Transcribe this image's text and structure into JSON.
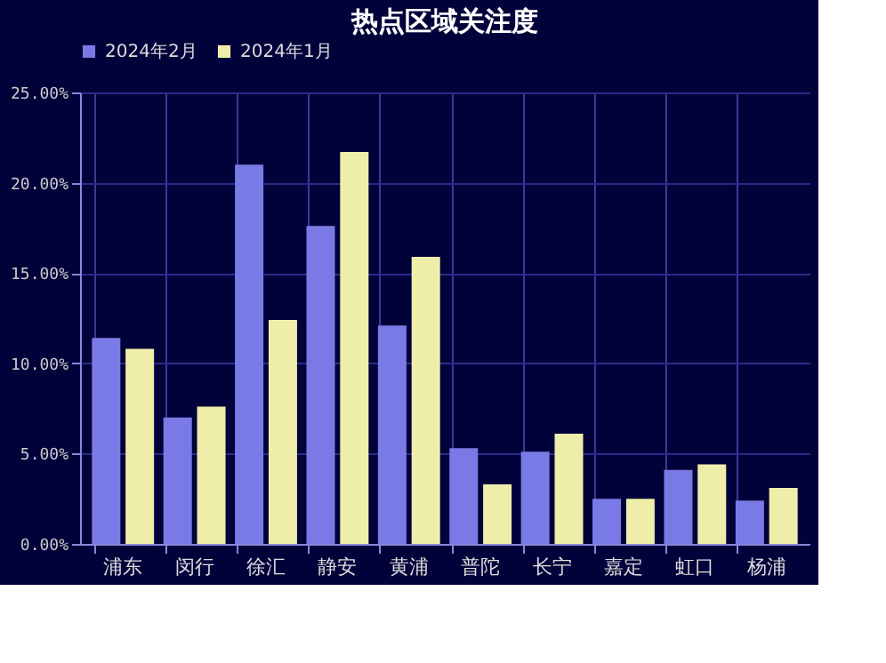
{
  "chart_data": {
    "type": "bar",
    "title": "热点区域关注度",
    "categories": [
      "浦东",
      "闵行",
      "徐汇",
      "静安",
      "黄浦",
      "普陀",
      "长宁",
      "嘉定",
      "虹口",
      "杨浦"
    ],
    "series": [
      {
        "name": "2024年2月",
        "color": "#7a7ae6",
        "values": [
          11.4,
          7.0,
          21.0,
          17.6,
          12.1,
          5.3,
          5.1,
          2.5,
          4.1,
          2.4
        ]
      },
      {
        "name": "2024年1月",
        "color": "#eeeeaa",
        "values": [
          10.8,
          7.6,
          12.4,
          21.7,
          15.9,
          3.3,
          6.1,
          2.5,
          4.4,
          3.1
        ]
      }
    ],
    "ylim": [
      0,
      25
    ],
    "yticks": [
      {
        "value": 0,
        "label": "0.00%"
      },
      {
        "value": 5,
        "label": "5.00%"
      },
      {
        "value": 10,
        "label": "10.00%"
      },
      {
        "value": 15,
        "label": "15.00%"
      },
      {
        "value": 20,
        "label": "20.00%"
      },
      {
        "value": 25,
        "label": "25.00%"
      }
    ],
    "grid": true,
    "legend": "top"
  }
}
